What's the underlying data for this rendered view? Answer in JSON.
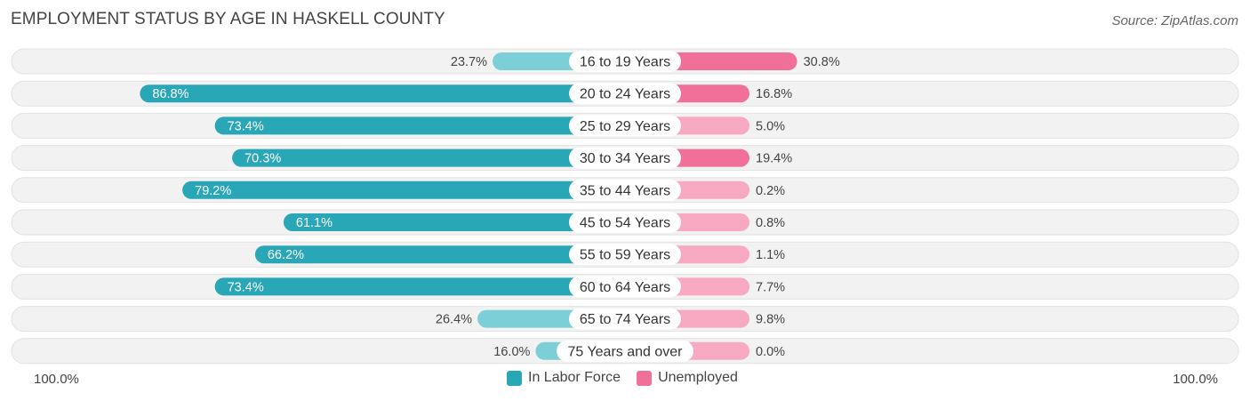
{
  "title": "EMPLOYMENT STATUS BY AGE IN HASKELL COUNTY",
  "source": "Source: ZipAtlas.com",
  "colors": {
    "labor_strong": "#2aa7b6",
    "labor_light": "#7ccfd7",
    "unemp_strong": "#f0709a",
    "unemp_light": "#f6a9c1",
    "row_bg": "#efefef"
  },
  "legend": {
    "labor": "In Labor Force",
    "unemployed": "Unemployed"
  },
  "axis": {
    "left": "100.0%",
    "right": "100.0%"
  },
  "chart_data": {
    "type": "bar",
    "orientation": "horizontal-diverging",
    "title": "EMPLOYMENT STATUS BY AGE IN HASKELL COUNTY",
    "xlim": [
      -100,
      100
    ],
    "categories": [
      "16 to 19 Years",
      "20 to 24 Years",
      "25 to 29 Years",
      "30 to 34 Years",
      "35 to 44 Years",
      "45 to 54 Years",
      "55 to 59 Years",
      "60 to 64 Years",
      "65 to 74 Years",
      "75 Years and over"
    ],
    "series": [
      {
        "name": "In Labor Force",
        "values": [
          23.7,
          86.8,
          73.4,
          70.3,
          79.2,
          61.1,
          66.2,
          73.4,
          26.4,
          16.0
        ],
        "labels": [
          "23.7%",
          "86.8%",
          "73.4%",
          "70.3%",
          "79.2%",
          "61.1%",
          "66.2%",
          "73.4%",
          "26.4%",
          "16.0%"
        ]
      },
      {
        "name": "Unemployed",
        "values": [
          30.8,
          16.8,
          5.0,
          19.4,
          0.2,
          0.8,
          1.1,
          7.7,
          9.8,
          0.0
        ],
        "labels": [
          "30.8%",
          "16.8%",
          "5.0%",
          "19.4%",
          "0.2%",
          "0.8%",
          "1.1%",
          "7.7%",
          "9.8%",
          "0.0%"
        ]
      }
    ]
  }
}
